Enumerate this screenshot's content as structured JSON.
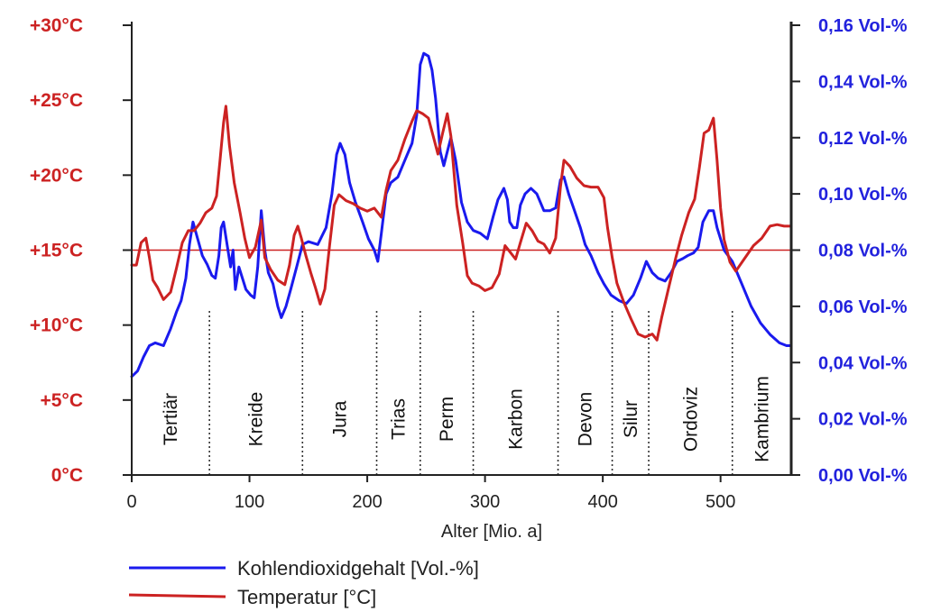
{
  "chart_data": {
    "type": "line",
    "xlabel": "Alter [Mio. a]",
    "xlim": [
      0,
      560
    ],
    "x_ticks": [
      0,
      100,
      200,
      300,
      400,
      500
    ],
    "left_axis": {
      "ylim": [
        0,
        30
      ],
      "color": "#cc2222",
      "tick_values": [
        0,
        5,
        10,
        15,
        20,
        25,
        30
      ],
      "tick_labels": [
        "0°C",
        "+5°C",
        "+10°C",
        "+15°C",
        "+20°C",
        "+25°C",
        "+30°C"
      ]
    },
    "right_axis": {
      "ylim": [
        0,
        0.16
      ],
      "color": "#2222dd",
      "tick_values": [
        0,
        0.02,
        0.04,
        0.06,
        0.08,
        0.1,
        0.12,
        0.14,
        0.16
      ],
      "tick_labels": [
        "0,00 Vol-%",
        "0,02 Vol-%",
        "0,04 Vol-%",
        "0,06 Vol-%",
        "0,08 Vol-%",
        "0,10 Vol-%",
        "0,12 Vol-%",
        "0,14 Vol-%",
        "0,16 Vol-%"
      ]
    },
    "reference_line": {
      "axis": "left",
      "value": 15,
      "color": "#cc2222"
    },
    "periods": [
      {
        "name": "Tertiär",
        "start": 0,
        "end": 66
      },
      {
        "name": "Kreide",
        "start": 66,
        "end": 145
      },
      {
        "name": "Jura",
        "start": 145,
        "end": 208
      },
      {
        "name": "Trias",
        "start": 208,
        "end": 245
      },
      {
        "name": "Perm",
        "start": 245,
        "end": 290
      },
      {
        "name": "Karbon",
        "start": 290,
        "end": 362
      },
      {
        "name": "Devon",
        "start": 362,
        "end": 408
      },
      {
        "name": "Silur",
        "start": 408,
        "end": 439
      },
      {
        "name": "Ordoviz",
        "start": 439,
        "end": 510
      },
      {
        "name": "Kambrium",
        "start": 510,
        "end": 560
      }
    ],
    "series": [
      {
        "name": "Kohlendioxidgehalt [Vol.-%]",
        "axis": "right",
        "color": "#1a1aee",
        "points": [
          [
            0,
            0.035
          ],
          [
            5,
            0.037
          ],
          [
            10,
            0.042
          ],
          [
            15,
            0.046
          ],
          [
            20,
            0.047
          ],
          [
            27,
            0.046
          ],
          [
            33,
            0.052
          ],
          [
            38,
            0.058
          ],
          [
            42,
            0.062
          ],
          [
            46,
            0.07
          ],
          [
            49,
            0.082
          ],
          [
            52,
            0.09
          ],
          [
            56,
            0.084
          ],
          [
            60,
            0.078
          ],
          [
            64,
            0.075
          ],
          [
            68,
            0.071
          ],
          [
            71,
            0.07
          ],
          [
            74,
            0.078
          ],
          [
            76,
            0.088
          ],
          [
            78,
            0.09
          ],
          [
            81,
            0.082
          ],
          [
            84,
            0.074
          ],
          [
            86,
            0.08
          ],
          [
            88,
            0.066
          ],
          [
            91,
            0.074
          ],
          [
            94,
            0.07
          ],
          [
            97,
            0.066
          ],
          [
            101,
            0.064
          ],
          [
            104,
            0.063
          ],
          [
            107,
            0.074
          ],
          [
            110,
            0.094
          ],
          [
            113,
            0.08
          ],
          [
            116,
            0.072
          ],
          [
            120,
            0.068
          ],
          [
            124,
            0.06
          ],
          [
            127,
            0.056
          ],
          [
            131,
            0.06
          ],
          [
            135,
            0.066
          ],
          [
            140,
            0.074
          ],
          [
            145,
            0.082
          ],
          [
            150,
            0.083
          ],
          [
            158,
            0.082
          ],
          [
            165,
            0.088
          ],
          [
            170,
            0.1
          ],
          [
            174,
            0.114
          ],
          [
            177,
            0.118
          ],
          [
            181,
            0.114
          ],
          [
            185,
            0.104
          ],
          [
            190,
            0.097
          ],
          [
            196,
            0.09
          ],
          [
            201,
            0.084
          ],
          [
            206,
            0.08
          ],
          [
            209,
            0.076
          ],
          [
            212,
            0.086
          ],
          [
            216,
            0.1
          ],
          [
            220,
            0.104
          ],
          [
            226,
            0.106
          ],
          [
            232,
            0.112
          ],
          [
            238,
            0.118
          ],
          [
            242,
            0.128
          ],
          [
            245,
            0.146
          ],
          [
            248,
            0.15
          ],
          [
            252,
            0.149
          ],
          [
            255,
            0.144
          ],
          [
            258,
            0.134
          ],
          [
            262,
            0.115
          ],
          [
            265,
            0.11
          ],
          [
            268,
            0.115
          ],
          [
            271,
            0.12
          ],
          [
            275,
            0.112
          ],
          [
            280,
            0.097
          ],
          [
            285,
            0.09
          ],
          [
            290,
            0.087
          ],
          [
            296,
            0.086
          ],
          [
            302,
            0.084
          ],
          [
            307,
            0.092
          ],
          [
            311,
            0.098
          ],
          [
            316,
            0.102
          ],
          [
            319,
            0.098
          ],
          [
            321,
            0.09
          ],
          [
            324,
            0.088
          ],
          [
            327,
            0.088
          ],
          [
            330,
            0.096
          ],
          [
            334,
            0.1
          ],
          [
            339,
            0.102
          ],
          [
            344,
            0.1
          ],
          [
            350,
            0.094
          ],
          [
            355,
            0.094
          ],
          [
            360,
            0.095
          ],
          [
            364,
            0.105
          ],
          [
            367,
            0.106
          ],
          [
            371,
            0.1
          ],
          [
            376,
            0.094
          ],
          [
            381,
            0.088
          ],
          [
            385,
            0.082
          ],
          [
            390,
            0.078
          ],
          [
            396,
            0.072
          ],
          [
            401,
            0.068
          ],
          [
            407,
            0.064
          ],
          [
            414,
            0.062
          ],
          [
            420,
            0.061
          ],
          [
            426,
            0.064
          ],
          [
            432,
            0.07
          ],
          [
            437,
            0.076
          ],
          [
            442,
            0.072
          ],
          [
            447,
            0.07
          ],
          [
            453,
            0.069
          ],
          [
            458,
            0.072
          ],
          [
            463,
            0.076
          ],
          [
            468,
            0.077
          ],
          [
            472,
            0.078
          ],
          [
            477,
            0.079
          ],
          [
            481,
            0.081
          ],
          [
            485,
            0.09
          ],
          [
            490,
            0.094
          ],
          [
            494,
            0.094
          ],
          [
            497,
            0.088
          ],
          [
            503,
            0.08
          ],
          [
            510,
            0.076
          ],
          [
            518,
            0.068
          ],
          [
            526,
            0.06
          ],
          [
            534,
            0.054
          ],
          [
            542,
            0.05
          ],
          [
            550,
            0.047
          ],
          [
            556,
            0.046
          ],
          [
            560,
            0.046
          ]
        ]
      },
      {
        "name": "Temperatur [°C]",
        "axis": "left",
        "color": "#cc2222",
        "points": [
          [
            0,
            14
          ],
          [
            4,
            14
          ],
          [
            8,
            15.5
          ],
          [
            12,
            15.8
          ],
          [
            15,
            14.5
          ],
          [
            18,
            13
          ],
          [
            22,
            12.5
          ],
          [
            27,
            11.7
          ],
          [
            33,
            12.2
          ],
          [
            38,
            13.8
          ],
          [
            43,
            15.5
          ],
          [
            48,
            16.3
          ],
          [
            53,
            16.3
          ],
          [
            58,
            16.8
          ],
          [
            63,
            17.5
          ],
          [
            68,
            17.8
          ],
          [
            72,
            18.6
          ],
          [
            75,
            21
          ],
          [
            78,
            23.5
          ],
          [
            80,
            24.6
          ],
          [
            83,
            22
          ],
          [
            87,
            19.5
          ],
          [
            92,
            17.5
          ],
          [
            96,
            15.8
          ],
          [
            100,
            14.5
          ],
          [
            105,
            15.2
          ],
          [
            110,
            17
          ],
          [
            113,
            14.5
          ],
          [
            118,
            13.7
          ],
          [
            124,
            13
          ],
          [
            130,
            12.7
          ],
          [
            134,
            14
          ],
          [
            138,
            16
          ],
          [
            141,
            16.6
          ],
          [
            144,
            15.8
          ],
          [
            148,
            14.6
          ],
          [
            152,
            13.5
          ],
          [
            156,
            12.5
          ],
          [
            160,
            11.4
          ],
          [
            164,
            12.4
          ],
          [
            168,
            15.3
          ],
          [
            172,
            18
          ],
          [
            176,
            18.7
          ],
          [
            182,
            18.3
          ],
          [
            188,
            18.1
          ],
          [
            194,
            17.8
          ],
          [
            200,
            17.6
          ],
          [
            206,
            17.8
          ],
          [
            212,
            17.2
          ],
          [
            216,
            19
          ],
          [
            220,
            20.3
          ],
          [
            226,
            21
          ],
          [
            232,
            22.4
          ],
          [
            238,
            23.6
          ],
          [
            242,
            24.3
          ],
          [
            247,
            24.1
          ],
          [
            252,
            23.8
          ],
          [
            256,
            22.6
          ],
          [
            260,
            21.4
          ],
          [
            264,
            22.8
          ],
          [
            268,
            24.1
          ],
          [
            271,
            22.6
          ],
          [
            276,
            18
          ],
          [
            281,
            15.5
          ],
          [
            285,
            13.3
          ],
          [
            289,
            12.8
          ],
          [
            295,
            12.6
          ],
          [
            300,
            12.3
          ],
          [
            306,
            12.5
          ],
          [
            312,
            13.4
          ],
          [
            317,
            15.3
          ],
          [
            322,
            14.8
          ],
          [
            326,
            14.4
          ],
          [
            330,
            15.5
          ],
          [
            335,
            16.8
          ],
          [
            340,
            16.3
          ],
          [
            345,
            15.6
          ],
          [
            350,
            15.4
          ],
          [
            355,
            14.8
          ],
          [
            360,
            15.8
          ],
          [
            364,
            19.2
          ],
          [
            367,
            21
          ],
          [
            372,
            20.6
          ],
          [
            378,
            19.8
          ],
          [
            384,
            19.3
          ],
          [
            390,
            19.2
          ],
          [
            396,
            19.2
          ],
          [
            401,
            18.5
          ],
          [
            404,
            16.5
          ],
          [
            408,
            14.5
          ],
          [
            412,
            12.8
          ],
          [
            418,
            11.5
          ],
          [
            424,
            10.4
          ],
          [
            430,
            9.4
          ],
          [
            436,
            9.2
          ],
          [
            442,
            9.4
          ],
          [
            446,
            9
          ],
          [
            450,
            10.5
          ],
          [
            456,
            12.5
          ],
          [
            462,
            14.5
          ],
          [
            467,
            16
          ],
          [
            473,
            17.5
          ],
          [
            478,
            18.4
          ],
          [
            482,
            20.5
          ],
          [
            486,
            22.8
          ],
          [
            490,
            23
          ],
          [
            494,
            23.8
          ],
          [
            497,
            21
          ],
          [
            500,
            17.8
          ],
          [
            503,
            15.7
          ],
          [
            508,
            14.2
          ],
          [
            513,
            13.6
          ],
          [
            520,
            14.4
          ],
          [
            528,
            15.3
          ],
          [
            535,
            15.8
          ],
          [
            542,
            16.6
          ],
          [
            548,
            16.7
          ],
          [
            554,
            16.6
          ],
          [
            560,
            16.6
          ]
        ]
      }
    ]
  }
}
